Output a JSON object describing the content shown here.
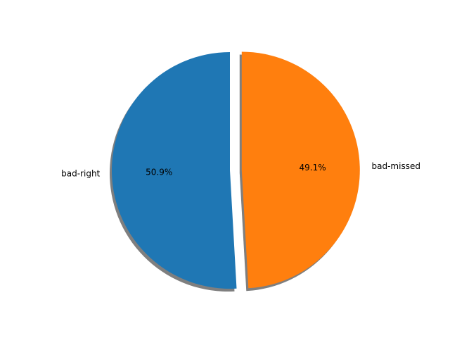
{
  "chart_data": {
    "type": "pie",
    "start_angle_deg": 90,
    "direction": "counterclockwise",
    "shadow": true,
    "slices": [
      {
        "label": "bad-right",
        "value": 50.9,
        "pct_label": "50.9%",
        "color": "#1f77b4",
        "explode": 0
      },
      {
        "label": "bad-missed",
        "value": 49.1,
        "pct_label": "49.1%",
        "color": "#ff7f0e",
        "explode": 0.1
      }
    ]
  }
}
